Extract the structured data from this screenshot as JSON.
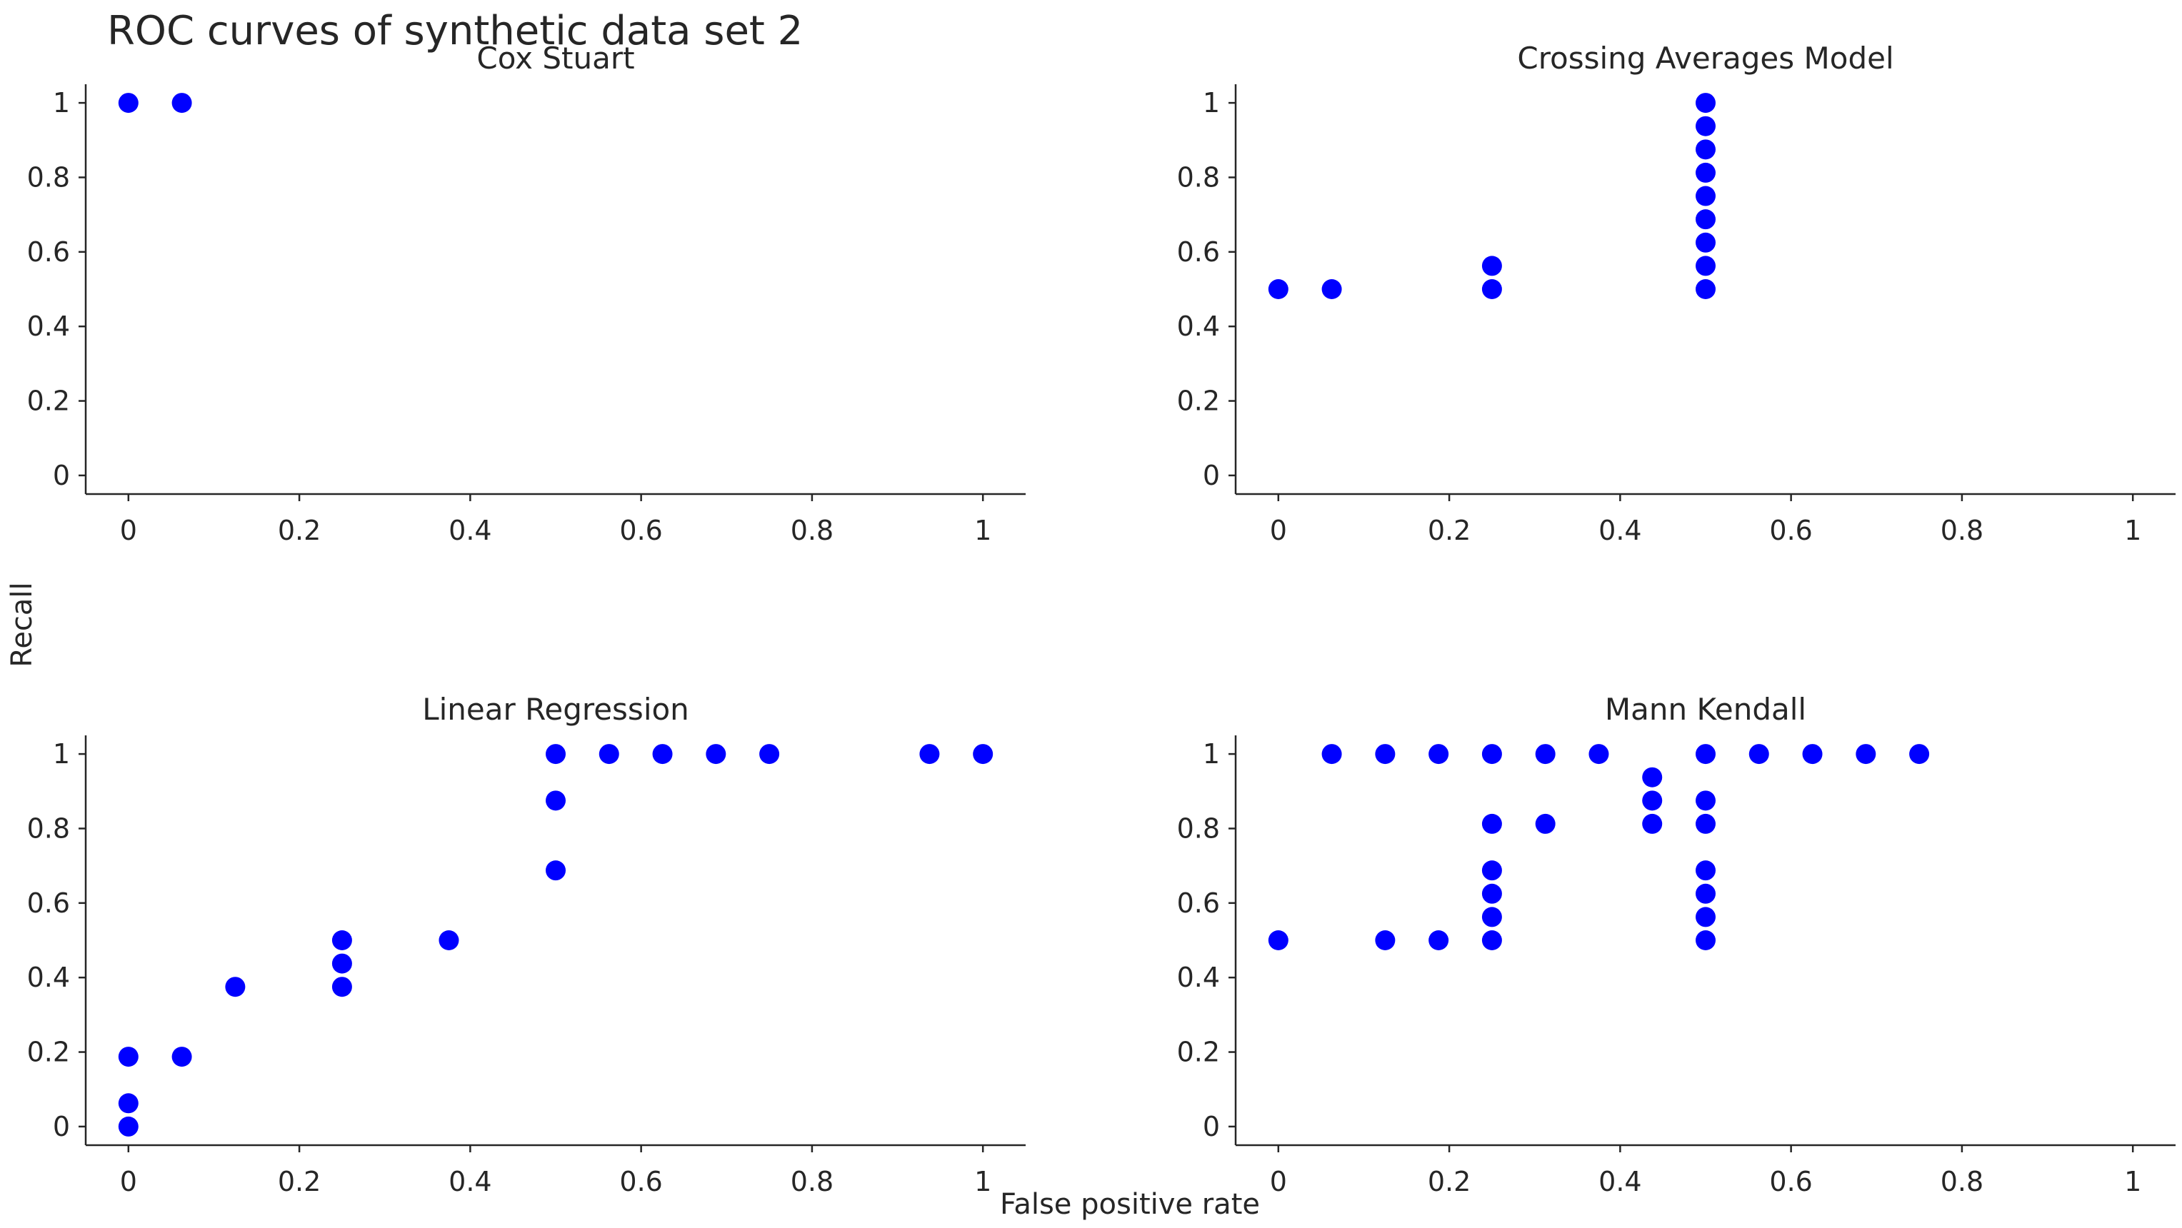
{
  "figure": {
    "title": "ROC curves of synthetic data set 2",
    "xlabel": "False positive rate",
    "ylabel": "Recall",
    "marker_color": "#0000ff"
  },
  "chart_data": [
    {
      "type": "scatter",
      "title": "Cox Stuart",
      "xlim": [
        -0.05,
        1.05
      ],
      "ylim": [
        -0.05,
        1.05
      ],
      "xticks": [
        0,
        0.2,
        0.4,
        0.6,
        0.8,
        1
      ],
      "xticklabels": [
        "0",
        "0.2",
        "0.4",
        "0.6",
        "0.8",
        "1"
      ],
      "yticks": [
        0,
        0.2,
        0.4,
        0.6,
        0.8,
        1
      ],
      "yticklabels": [
        "0",
        "0.2",
        "0.4",
        "0.6",
        "0.8",
        "1"
      ],
      "x": [
        0,
        0.0625
      ],
      "y": [
        1,
        1
      ]
    },
    {
      "type": "scatter",
      "title": "Crossing Averages Model",
      "xlim": [
        -0.05,
        1.05
      ],
      "ylim": [
        -0.05,
        1.05
      ],
      "xticks": [
        0,
        0.2,
        0.4,
        0.6,
        0.8,
        1
      ],
      "xticklabels": [
        "0",
        "0.2",
        "0.4",
        "0.6",
        "0.8",
        "1"
      ],
      "yticks": [
        0,
        0.2,
        0.4,
        0.6,
        0.8,
        1
      ],
      "yticklabels": [
        "0",
        "0.2",
        "0.4",
        "0.6",
        "0.8",
        "1"
      ],
      "x": [
        0,
        0.0625,
        0.25,
        0.25,
        0.5,
        0.5,
        0.5,
        0.5,
        0.5,
        0.5,
        0.5,
        0.5,
        0.5
      ],
      "y": [
        0.5,
        0.5,
        0.5,
        0.5625,
        0.5,
        0.5625,
        0.625,
        0.6875,
        0.75,
        0.8125,
        0.875,
        0.9375,
        1
      ]
    },
    {
      "type": "scatter",
      "title": "Linear Regression",
      "xlim": [
        -0.05,
        1.05
      ],
      "ylim": [
        -0.05,
        1.05
      ],
      "xticks": [
        0,
        0.2,
        0.4,
        0.6,
        0.8,
        1
      ],
      "xticklabels": [
        "0",
        "0.2",
        "0.4",
        "0.6",
        "0.8",
        "1"
      ],
      "yticks": [
        0,
        0.2,
        0.4,
        0.6,
        0.8,
        1
      ],
      "yticklabels": [
        "0",
        "0.2",
        "0.4",
        "0.6",
        "0.8",
        "1"
      ],
      "x": [
        0,
        0,
        0,
        0.0625,
        0.125,
        0.25,
        0.25,
        0.25,
        0.375,
        0.5,
        0.5,
        0.5,
        0.5625,
        0.625,
        0.6875,
        0.75,
        0.9375,
        1
      ],
      "y": [
        0,
        0.0625,
        0.1875,
        0.1875,
        0.375,
        0.375,
        0.4375,
        0.5,
        0.5,
        0.6875,
        0.875,
        1,
        1,
        1,
        1,
        1,
        1,
        1
      ]
    },
    {
      "type": "scatter",
      "title": "Mann Kendall",
      "xlim": [
        -0.05,
        1.05
      ],
      "ylim": [
        -0.05,
        1.05
      ],
      "xticks": [
        0,
        0.2,
        0.4,
        0.6,
        0.8,
        1
      ],
      "xticklabels": [
        "0",
        "0.2",
        "0.4",
        "0.6",
        "0.8",
        "1"
      ],
      "yticks": [
        0,
        0.2,
        0.4,
        0.6,
        0.8,
        1
      ],
      "yticklabels": [
        "0",
        "0.2",
        "0.4",
        "0.6",
        "0.8",
        "1"
      ],
      "x": [
        0,
        0.0625,
        0.125,
        0.125,
        0.1875,
        0.1875,
        0.25,
        0.25,
        0.25,
        0.25,
        0.25,
        0.25,
        0.3125,
        0.3125,
        0.375,
        0.4375,
        0.4375,
        0.4375,
        0.5,
        0.5,
        0.5,
        0.5,
        0.5,
        0.5,
        0.5,
        0.5625,
        0.625,
        0.6875,
        0.75
      ],
      "y": [
        0.5,
        1,
        0.5,
        1,
        0.5,
        1,
        0.5,
        0.5625,
        0.625,
        0.6875,
        0.8125,
        1,
        0.8125,
        1,
        1,
        0.8125,
        0.875,
        0.9375,
        0.5,
        0.5625,
        0.625,
        0.6875,
        0.8125,
        0.875,
        1,
        1,
        1,
        1,
        1
      ]
    }
  ]
}
